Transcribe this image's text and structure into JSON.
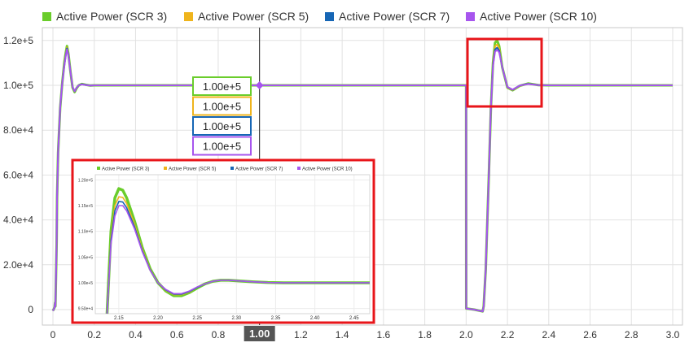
{
  "colors": {
    "scr3": "#6ACD2B",
    "scr5": "#EFB41C",
    "scr7": "#1666B5",
    "scr10": "#A755EE",
    "highlight": "#E8151A",
    "crosshair": "#222222",
    "grid": "#E2E2E2",
    "axis_text": "#333333",
    "cursor_badge": "#555555"
  },
  "chart_data": [
    {
      "type": "line",
      "title": "",
      "xlabel": "",
      "ylabel": "",
      "xlim": [
        0,
        3.0
      ],
      "ylim": [
        -5000,
        125000
      ],
      "x_ticks": [
        0,
        0.2,
        0.4,
        0.6,
        0.8,
        1.0,
        1.2,
        1.4,
        1.6,
        1.8,
        2.0,
        2.2,
        2.4,
        2.6,
        2.8,
        3.0
      ],
      "x_tick_labels": [
        "0",
        "0.2",
        "0.4",
        "0.6",
        "0.8",
        "1.0",
        "1.2",
        "1.4",
        "1.6",
        "1.8",
        "2.0",
        "2.2",
        "2.4",
        "2.6",
        "2.8",
        "3.0"
      ],
      "y_ticks": [
        0,
        20000,
        40000,
        60000,
        80000,
        100000,
        120000
      ],
      "y_tick_labels": [
        "0",
        "2.0e+4",
        "4.0e+4",
        "6.0e+4",
        "8.0e+4",
        "1.0e+5",
        "1.2e+5"
      ],
      "grid": true,
      "legend_position": "top",
      "cursor": {
        "x": 1.0,
        "label": "1.00",
        "values": [
          {
            "series": "Active Power (SCR 3)",
            "label": "1.00e+5"
          },
          {
            "series": "Active Power (SCR 5)",
            "label": "1.00e+5"
          },
          {
            "series": "Active Power (SCR 7)",
            "label": "1.00e+5"
          },
          {
            "series": "Active Power (SCR 10)",
            "label": "1.00e+5"
          }
        ]
      },
      "series": [
        {
          "name": "Active Power (SCR 3)",
          "color": "#6ACD2B",
          "x": [
            0,
            0.008,
            0.01,
            0.012,
            0.018,
            0.02,
            0.025,
            0.035,
            0.045,
            0.055,
            0.062,
            0.068,
            0.075,
            0.085,
            0.095,
            0.105,
            0.115,
            0.125,
            0.14,
            0.16,
            0.18,
            0.2,
            1.0,
            2.0,
            2.0005,
            2.04,
            2.08,
            2.085,
            2.095,
            2.11,
            2.12,
            2.13,
            2.14,
            2.15,
            2.16,
            2.175,
            2.2,
            2.225,
            2.26,
            2.3,
            2.35,
            2.4,
            2.5,
            2.6,
            3.0
          ],
          "y": [
            -500,
            1000,
            3000,
            1500,
            30000,
            50000,
            70000,
            90000,
            101000,
            110000,
            114500,
            117500,
            114000,
            106000,
            99000,
            97000,
            98800,
            100000,
            100600,
            100200,
            99900,
            100000,
            100000,
            100000,
            500,
            0,
            -800,
            1500,
            18000,
            60000,
            90000,
            110000,
            119000,
            120000,
            117500,
            108000,
            99000,
            97800,
            99800,
            100800,
            100100,
            100000,
            100000,
            100000,
            100000
          ]
        },
        {
          "name": "Active Power (SCR 5)",
          "color": "#EFB41C",
          "x": [
            0,
            0.008,
            0.01,
            0.012,
            0.018,
            0.02,
            0.025,
            0.035,
            0.045,
            0.055,
            0.062,
            0.068,
            0.075,
            0.085,
            0.095,
            0.105,
            0.115,
            0.125,
            0.14,
            0.16,
            0.18,
            0.2,
            1.0,
            2.0,
            2.0005,
            2.04,
            2.08,
            2.085,
            2.095,
            2.11,
            2.12,
            2.13,
            2.14,
            2.15,
            2.16,
            2.175,
            2.2,
            2.225,
            2.26,
            2.3,
            2.35,
            2.4,
            2.5,
            2.6,
            3.0
          ],
          "y": [
            -500,
            1000,
            3000,
            1500,
            30000,
            50000,
            70000,
            90000,
            101000,
            109500,
            114000,
            117000,
            113700,
            106000,
            99100,
            97200,
            98900,
            100000,
            100500,
            100200,
            99900,
            100000,
            100000,
            100000,
            500,
            0,
            -800,
            1500,
            18000,
            60000,
            90000,
            109500,
            117500,
            118200,
            116500,
            108000,
            99000,
            97900,
            99800,
            100700,
            100100,
            100000,
            100000,
            100000,
            100000
          ]
        },
        {
          "name": "Active Power (SCR 7)",
          "color": "#1666B5",
          "x": [
            0,
            0.008,
            0.01,
            0.012,
            0.018,
            0.02,
            0.025,
            0.035,
            0.045,
            0.055,
            0.062,
            0.068,
            0.075,
            0.085,
            0.095,
            0.105,
            0.115,
            0.125,
            0.14,
            0.16,
            0.18,
            0.2,
            1.0,
            2.0,
            2.0005,
            2.04,
            2.08,
            2.085,
            2.095,
            2.11,
            2.12,
            2.13,
            2.14,
            2.15,
            2.16,
            2.175,
            2.2,
            2.225,
            2.26,
            2.3,
            2.35,
            2.4,
            2.5,
            2.6,
            3.0
          ],
          "y": [
            -500,
            1000,
            3000,
            1500,
            30000,
            50000,
            70000,
            90000,
            101000,
            109000,
            113500,
            116500,
            113500,
            106000,
            99200,
            97300,
            98900,
            100000,
            100500,
            100200,
            99900,
            100000,
            100000,
            100000,
            500,
            0,
            -800,
            1500,
            18000,
            60000,
            90000,
            109000,
            116000,
            116800,
            115500,
            108000,
            99200,
            98000,
            99900,
            100700,
            100100,
            100000,
            100000,
            100000,
            100000
          ]
        },
        {
          "name": "Active Power (SCR 10)",
          "color": "#A755EE",
          "x": [
            0,
            0.008,
            0.01,
            0.012,
            0.018,
            0.02,
            0.025,
            0.035,
            0.045,
            0.055,
            0.062,
            0.068,
            0.075,
            0.085,
            0.095,
            0.105,
            0.115,
            0.125,
            0.14,
            0.16,
            0.18,
            0.2,
            1.0,
            2.0,
            2.0005,
            2.04,
            2.08,
            2.085,
            2.095,
            2.11,
            2.12,
            2.13,
            2.14,
            2.15,
            2.16,
            2.175,
            2.2,
            2.225,
            2.26,
            2.3,
            2.35,
            2.4,
            2.5,
            2.6,
            3.0
          ],
          "y": [
            -500,
            1000,
            3000,
            1500,
            30000,
            50000,
            70000,
            90000,
            101000,
            108500,
            113000,
            116000,
            113200,
            106000,
            99300,
            97400,
            99000,
            100000,
            100400,
            100100,
            99900,
            100000,
            100000,
            100000,
            500,
            0,
            -800,
            1500,
            18000,
            60000,
            90000,
            108500,
            115000,
            115800,
            114700,
            108000,
            99300,
            98100,
            99900,
            100600,
            100100,
            100000,
            100000,
            100000,
            100000
          ]
        }
      ]
    },
    {
      "type": "line",
      "title": "",
      "xlabel": "",
      "ylabel": "",
      "xlim": [
        2.12,
        2.47
      ],
      "ylim": [
        94000,
        121000
      ],
      "x_ticks": [
        2.15,
        2.2,
        2.25,
        2.3,
        2.35,
        2.4,
        2.45
      ],
      "x_tick_labels": [
        "2.15",
        "2.20",
        "2.25",
        "2.30",
        "2.35",
        "2.40",
        "2.45"
      ],
      "y_ticks": [
        95000,
        100000,
        105000,
        110000,
        115000,
        120000
      ],
      "y_tick_labels": [
        "9.50e+4",
        "1.00e+5",
        "1.05e+5",
        "1.10e+5",
        "1.15e+5",
        "1.20e+5"
      ],
      "grid": true,
      "legend_position": "top",
      "series": [
        {
          "name": "Active Power (SCR 3)",
          "color": "#6ACD2B",
          "x": [
            2.135,
            2.14,
            2.145,
            2.15,
            2.155,
            2.16,
            2.17,
            2.18,
            2.19,
            2.2,
            2.21,
            2.22,
            2.23,
            2.24,
            2.25,
            2.26,
            2.27,
            2.28,
            2.29,
            2.3,
            2.31,
            2.32,
            2.34,
            2.36,
            2.38,
            2.4,
            2.42,
            2.44,
            2.46,
            2.47
          ],
          "y": [
            94000,
            110000,
            116500,
            118300,
            118000,
            116500,
            112000,
            106800,
            102700,
            100000,
            98400,
            97500,
            97500,
            98100,
            99000,
            99800,
            100300,
            100500,
            100500,
            100400,
            100300,
            100200,
            100050,
            100000,
            100000,
            100000,
            100000,
            100000,
            100000,
            100000
          ]
        },
        {
          "name": "Active Power (SCR 5)",
          "color": "#EFB41C",
          "x": [
            2.135,
            2.14,
            2.145,
            2.15,
            2.155,
            2.16,
            2.17,
            2.18,
            2.19,
            2.2,
            2.21,
            2.22,
            2.23,
            2.24,
            2.25,
            2.26,
            2.27,
            2.28,
            2.29,
            2.3,
            2.31,
            2.32,
            2.34,
            2.36,
            2.38,
            2.4,
            2.42,
            2.44,
            2.46,
            2.47
          ],
          "y": [
            94000,
            109000,
            115000,
            116700,
            116600,
            115400,
            111400,
            106500,
            102600,
            100000,
            98500,
            97700,
            97700,
            98200,
            99100,
            99800,
            100300,
            100500,
            100500,
            100400,
            100300,
            100200,
            100050,
            100000,
            100000,
            100000,
            100000,
            100000,
            100000,
            100000
          ]
        },
        {
          "name": "Active Power (SCR 7)",
          "color": "#1666B5",
          "x": [
            2.135,
            2.14,
            2.145,
            2.15,
            2.155,
            2.16,
            2.17,
            2.18,
            2.19,
            2.2,
            2.21,
            2.22,
            2.23,
            2.24,
            2.25,
            2.26,
            2.27,
            2.28,
            2.29,
            2.3,
            2.31,
            2.32,
            2.34,
            2.36,
            2.38,
            2.4,
            2.42,
            2.44,
            2.46,
            2.47
          ],
          "y": [
            94000,
            108300,
            114000,
            115800,
            115700,
            114600,
            110900,
            106200,
            102500,
            100000,
            98600,
            97800,
            97800,
            98300,
            99100,
            99800,
            100300,
            100500,
            100500,
            100400,
            100300,
            100200,
            100050,
            100000,
            100000,
            100000,
            100000,
            100000,
            100000,
            100000
          ]
        },
        {
          "name": "Active Power (SCR 10)",
          "color": "#A755EE",
          "x": [
            2.135,
            2.14,
            2.145,
            2.15,
            2.155,
            2.16,
            2.17,
            2.18,
            2.19,
            2.2,
            2.21,
            2.22,
            2.23,
            2.24,
            2.25,
            2.26,
            2.27,
            2.28,
            2.29,
            2.3,
            2.31,
            2.32,
            2.34,
            2.36,
            2.38,
            2.4,
            2.42,
            2.44,
            2.46,
            2.47
          ],
          "y": [
            94000,
            107500,
            113000,
            115000,
            115000,
            114000,
            110500,
            106000,
            102400,
            100000,
            98700,
            97900,
            97900,
            98400,
            99200,
            99800,
            100300,
            100500,
            100500,
            100400,
            100300,
            100200,
            100050,
            100000,
            100000,
            100000,
            100000,
            100000,
            100000,
            100000
          ]
        }
      ]
    }
  ]
}
